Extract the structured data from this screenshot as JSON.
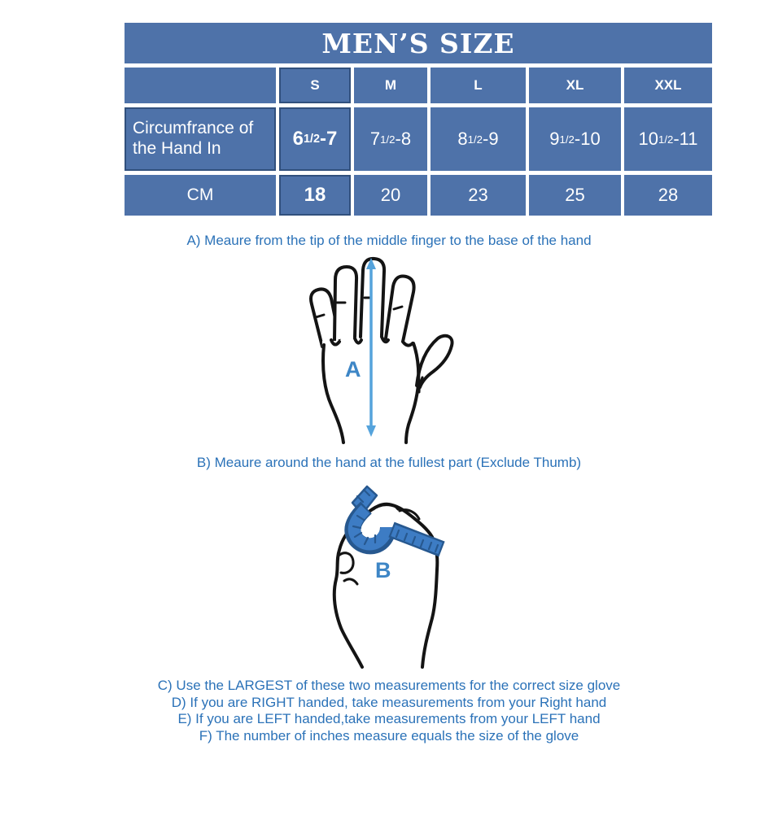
{
  "table": {
    "title": "MEN’S SIZE",
    "columns": [
      "",
      "S",
      "M",
      "L",
      "XL",
      "XXL"
    ],
    "rows": [
      {
        "label": "Circumfrance of the Hand In",
        "cells": [
          {
            "pre": "6 ",
            "frac": "1/2",
            "post": "-7",
            "bold": true
          },
          {
            "pre": "7",
            "frac": "1/2",
            "post": "-8"
          },
          {
            "pre": "8",
            "frac": "1/2",
            "post": " -9"
          },
          {
            "pre": "9",
            "frac": "1/2",
            "post": " -10"
          },
          {
            "pre": "10",
            "frac": "1/2",
            "post": "-11"
          }
        ]
      },
      {
        "label": "CM",
        "cells": [
          {
            "pre": "18",
            "bold": true
          },
          {
            "pre": "20"
          },
          {
            "pre": "23"
          },
          {
            "pre": "25"
          },
          {
            "pre": "28"
          }
        ]
      }
    ]
  },
  "instructions": {
    "a": "A) Meaure from the tip of the middle finger to the base of the hand",
    "b": "B) Meaure around the hand at the fullest part (Exclude Thumb)",
    "notes": [
      "C) Use the LARGEST of these two measurements for the correct size glove",
      "D) If you are RIGHT handed, take measurements from your Right hand",
      "E) If you are LEFT handed,take measurements from your LEFT hand",
      "F) The number of inches measure equals the size of the glove"
    ]
  },
  "diagrams": {
    "hand_label": "A",
    "fist_label": "B"
  },
  "colors": {
    "table_blue": "#4E72A9",
    "text_blue": "#2B72B8",
    "label_blue": "#3E86C6",
    "arrow_blue": "#55A3DC",
    "tape_blue": "#3D7CC4",
    "tape_dark": "#27588F"
  }
}
